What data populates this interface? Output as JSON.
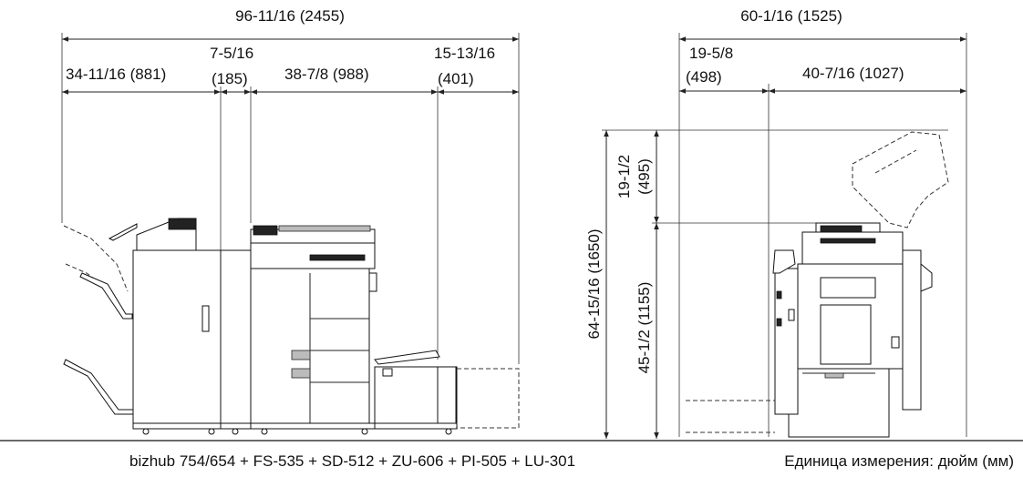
{
  "front_view": {
    "total_width": "96-11/16 (2455)",
    "finisher_width": "34-11/16 (881)",
    "relay_width_in": "7-5/16",
    "relay_width_mm": "(185)",
    "main_body_width": "38-7/8 (988)",
    "lcu_width_in": "15-13/16",
    "lcu_width_mm": "(401)"
  },
  "side_view": {
    "total_depth": "60-1/16 (1525)",
    "front_depth_in": "19-5/8",
    "front_depth_mm": "(498)",
    "body_depth": "40-7/16 (1027)",
    "total_height": "64-15/16 (1650)",
    "lid_height_in": "19-1/2",
    "lid_height_mm": "(495)",
    "body_height": "45-1/2 (1155)"
  },
  "caption": {
    "model": "bizhub 754/654 + FS-535 + SD-512 + ZU-606 + PI-505 + LU-301",
    "units": "Единица измерения: дюйм (мм)"
  }
}
